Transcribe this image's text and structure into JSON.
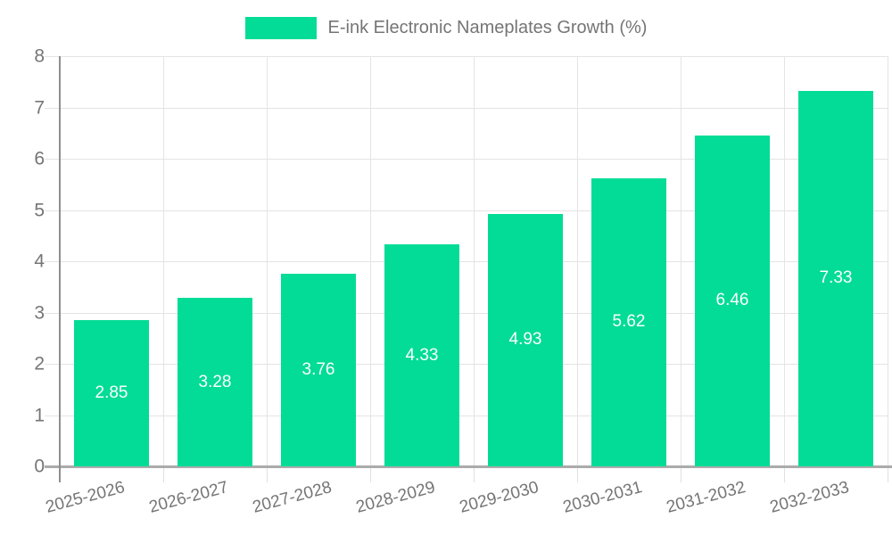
{
  "legend": {
    "label": "E-ink Electronic Nameplates Growth (%)"
  },
  "chart_data": {
    "type": "bar",
    "title": "E-ink Electronic Nameplates Growth (%)",
    "categories": [
      "2025-2026",
      "2026-2027",
      "2027-2028",
      "2028-2029",
      "2029-2030",
      "2030-2031",
      "2031-2032",
      "2032-2033"
    ],
    "values": [
      2.85,
      3.28,
      3.76,
      4.33,
      4.93,
      5.62,
      6.46,
      7.33
    ],
    "value_labels": [
      "2.85",
      "3.28",
      "3.76",
      "4.33",
      "4.93",
      "5.62",
      "6.46",
      "7.33"
    ],
    "y_ticks": [
      0,
      1,
      2,
      3,
      4,
      5,
      6,
      7,
      8
    ],
    "ylim": [
      0,
      8
    ],
    "xlabel": "",
    "ylabel": "",
    "grid": true,
    "legend_position": "top-center",
    "colors": {
      "bar": "#03DC96",
      "value_label_text": "#ffffff",
      "axis_text": "#757575",
      "legend_text": "#757575",
      "gridline": "#e4e4e4",
      "x_axis_line": "#ababab",
      "y_axis_line": "#8f8f8f",
      "tick": "#e0e0e0",
      "background": "#ffffff"
    }
  }
}
